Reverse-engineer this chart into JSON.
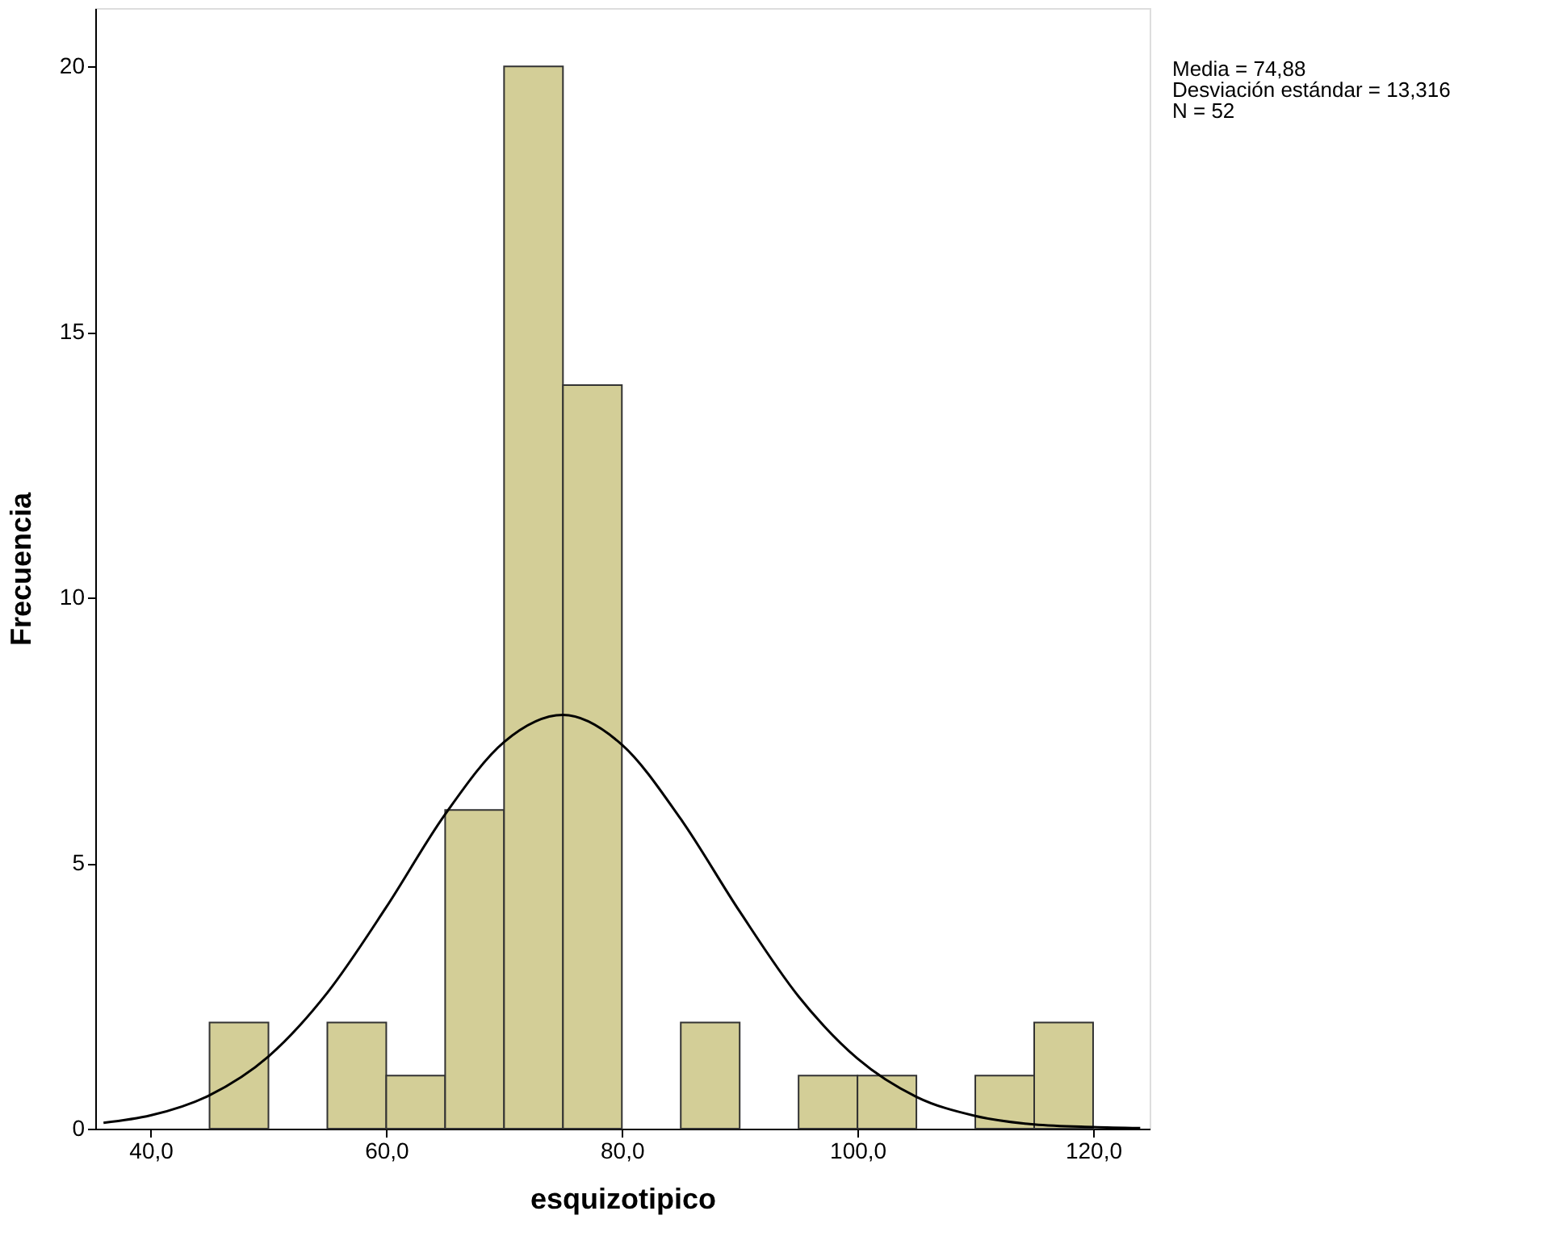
{
  "chart_data": {
    "type": "histogram",
    "xlabel": "esquizotipico",
    "ylabel": "Frecuencia",
    "bins": [
      45,
      50,
      55,
      60,
      65,
      70,
      75,
      80,
      85,
      90,
      95,
      100,
      105,
      110,
      115,
      120
    ],
    "values": [
      2,
      0,
      2,
      1,
      6,
      20,
      14,
      0,
      2,
      0,
      1,
      1,
      0,
      1,
      2
    ],
    "color": "#d3ce97",
    "series": [
      {
        "type": "line",
        "color": "#000000",
        "x": [
          36,
          40,
          45,
          50,
          55,
          60,
          65,
          70,
          75,
          80,
          85,
          90,
          95,
          100,
          105,
          110,
          115,
          120,
          124
        ],
        "values": [
          0.11,
          0.25,
          0.63,
          1.36,
          2.56,
          4.17,
          5.92,
          7.28,
          7.79,
          7.23,
          5.83,
          4.09,
          2.49,
          1.32,
          0.6,
          0.24,
          0.08,
          0.03,
          0.01
        ]
      }
    ],
    "xlim": [
      35.3,
      124.8
    ],
    "ylim": [
      0,
      21.1
    ],
    "xticks": [
      {
        "value": 40,
        "label": "40,0"
      },
      {
        "value": 60,
        "label": "60,0"
      },
      {
        "value": 80,
        "label": "80,0"
      },
      {
        "value": 100,
        "label": "100,0"
      },
      {
        "value": 120,
        "label": "120,0"
      }
    ],
    "yticks": [
      0,
      5,
      10,
      15,
      20
    ],
    "grid": false,
    "annotations": [
      "Media = 74,88",
      "Desviación estándar = 13,316",
      "N = 52"
    ]
  }
}
